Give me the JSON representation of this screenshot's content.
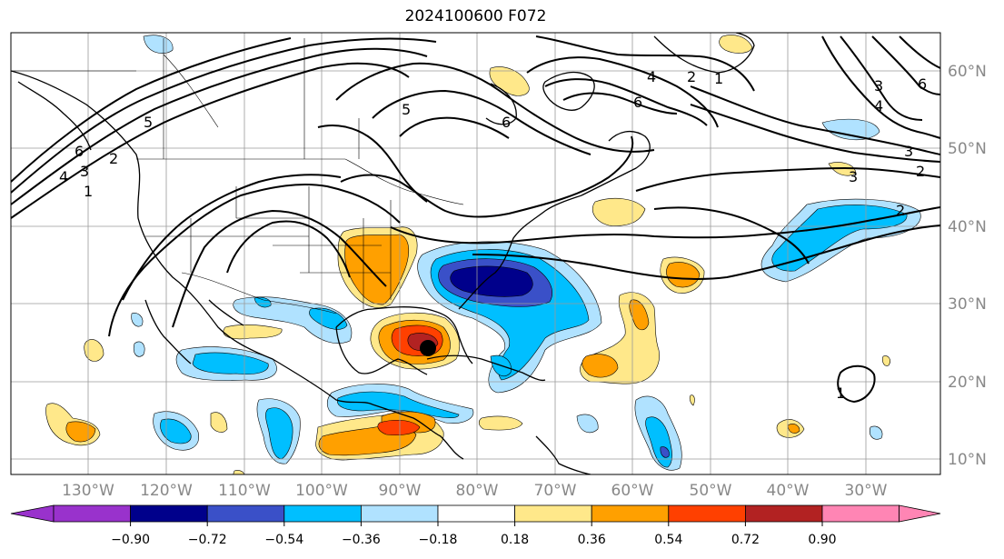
{
  "title": "2024100600 F072",
  "map": {
    "lon_labels": [
      "130°W",
      "120°W",
      "110°W",
      "100°W",
      "90°W",
      "80°W",
      "70°W",
      "60°W",
      "50°W",
      "40°W",
      "30°W"
    ],
    "lat_labels": [
      "60°N",
      "50°N",
      "40°N",
      "30°N",
      "20°N",
      "10°N"
    ],
    "contour_labels": [
      "5",
      "6",
      "4",
      "3",
      "2",
      "1",
      "5",
      "6",
      "4",
      "2",
      "1",
      "6",
      "3",
      "2",
      "6",
      "4",
      "3",
      "3",
      "2",
      "1"
    ],
    "marker": "storm-center"
  },
  "colorbar": {
    "ticks": [
      "−0.90",
      "−0.72",
      "−0.54",
      "−0.36",
      "−0.18",
      "0.18",
      "0.36",
      "0.54",
      "0.72",
      "0.90"
    ],
    "colors": [
      "#9932cc",
      "#00008b",
      "#3a50c8",
      "#00bfff",
      "#b0e2ff",
      "#ffffff",
      "#ffe88a",
      "#ffa000",
      "#ff4000",
      "#b22222",
      "#ff85b4"
    ]
  },
  "palette": {
    "neg_090": "#00008b",
    "neg_072": "#3a50c8",
    "neg_054": "#00bfff",
    "neg_036": "#b0e2ff",
    "pos_036": "#ffe88a",
    "pos_054": "#ffa000",
    "pos_072": "#ff4000",
    "pos_090": "#b22222"
  }
}
